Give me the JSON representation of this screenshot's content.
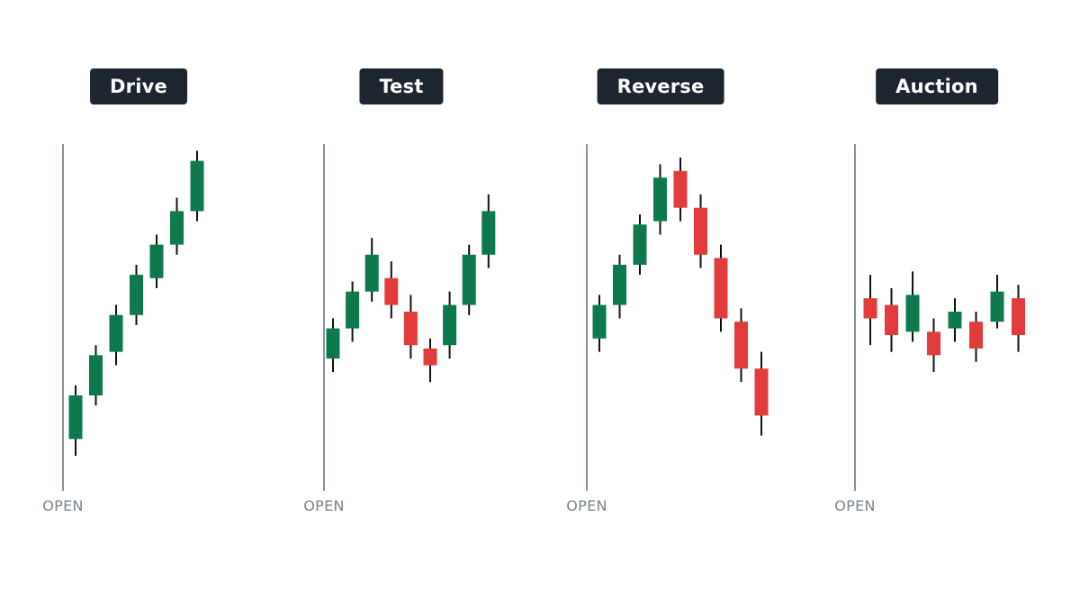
{
  "colors": {
    "bull": "#0c7a4c",
    "bear": "#e23b3b",
    "wick": "#111111",
    "axis": "#8a9099",
    "badge_bg": "#1d2630",
    "badge_text": "#ffffff",
    "open_text": "#7b828c"
  },
  "chart_data": [
    {
      "type": "candlestick",
      "title": "Drive",
      "xlabel": "OPEN",
      "ylim": [
        0,
        100
      ],
      "candles": [
        {
          "open": 12,
          "close": 25,
          "high": 28,
          "low": 7
        },
        {
          "open": 25,
          "close": 37,
          "high": 40,
          "low": 22
        },
        {
          "open": 38,
          "close": 49,
          "high": 52,
          "low": 34
        },
        {
          "open": 49,
          "close": 61,
          "high": 64,
          "low": 46
        },
        {
          "open": 60,
          "close": 70,
          "high": 73,
          "low": 57
        },
        {
          "open": 70,
          "close": 80,
          "high": 84,
          "low": 67
        },
        {
          "open": 80,
          "close": 95,
          "high": 98,
          "low": 77
        }
      ]
    },
    {
      "type": "candlestick",
      "title": "Test",
      "xlabel": "OPEN",
      "ylim": [
        0,
        100
      ],
      "candles": [
        {
          "open": 36,
          "close": 45,
          "high": 48,
          "low": 32
        },
        {
          "open": 45,
          "close": 56,
          "high": 59,
          "low": 41
        },
        {
          "open": 56,
          "close": 67,
          "high": 72,
          "low": 53
        },
        {
          "open": 60,
          "close": 52,
          "high": 65,
          "low": 48
        },
        {
          "open": 50,
          "close": 40,
          "high": 55,
          "low": 36
        },
        {
          "open": 39,
          "close": 34,
          "high": 42,
          "low": 29
        },
        {
          "open": 40,
          "close": 52,
          "high": 56,
          "low": 36
        },
        {
          "open": 52,
          "close": 67,
          "high": 70,
          "low": 49
        },
        {
          "open": 67,
          "close": 80,
          "high": 85,
          "low": 63
        }
      ]
    },
    {
      "type": "candlestick",
      "title": "Reverse",
      "xlabel": "OPEN",
      "ylim": [
        0,
        100
      ],
      "candles": [
        {
          "open": 42,
          "close": 52,
          "high": 55,
          "low": 38
        },
        {
          "open": 52,
          "close": 64,
          "high": 67,
          "low": 48
        },
        {
          "open": 64,
          "close": 76,
          "high": 79,
          "low": 61
        },
        {
          "open": 77,
          "close": 90,
          "high": 94,
          "low": 73
        },
        {
          "open": 92,
          "close": 81,
          "high": 96,
          "low": 77
        },
        {
          "open": 81,
          "close": 67,
          "high": 85,
          "low": 63
        },
        {
          "open": 66,
          "close": 48,
          "high": 70,
          "low": 44
        },
        {
          "open": 47,
          "close": 33,
          "high": 51,
          "low": 29
        },
        {
          "open": 33,
          "close": 19,
          "high": 38,
          "low": 13
        }
      ]
    },
    {
      "type": "candlestick",
      "title": "Auction",
      "xlabel": "OPEN",
      "ylim": [
        0,
        100
      ],
      "candles": [
        {
          "open": 54,
          "close": 48,
          "high": 61,
          "low": 40
        },
        {
          "open": 52,
          "close": 43,
          "high": 57,
          "low": 38
        },
        {
          "open": 44,
          "close": 55,
          "high": 62,
          "low": 41
        },
        {
          "open": 44,
          "close": 37,
          "high": 48,
          "low": 32
        },
        {
          "open": 45,
          "close": 50,
          "high": 54,
          "low": 41
        },
        {
          "open": 47,
          "close": 39,
          "high": 50,
          "low": 35
        },
        {
          "open": 47,
          "close": 56,
          "high": 61,
          "low": 45
        },
        {
          "open": 54,
          "close": 43,
          "high": 58,
          "low": 38
        }
      ]
    }
  ]
}
